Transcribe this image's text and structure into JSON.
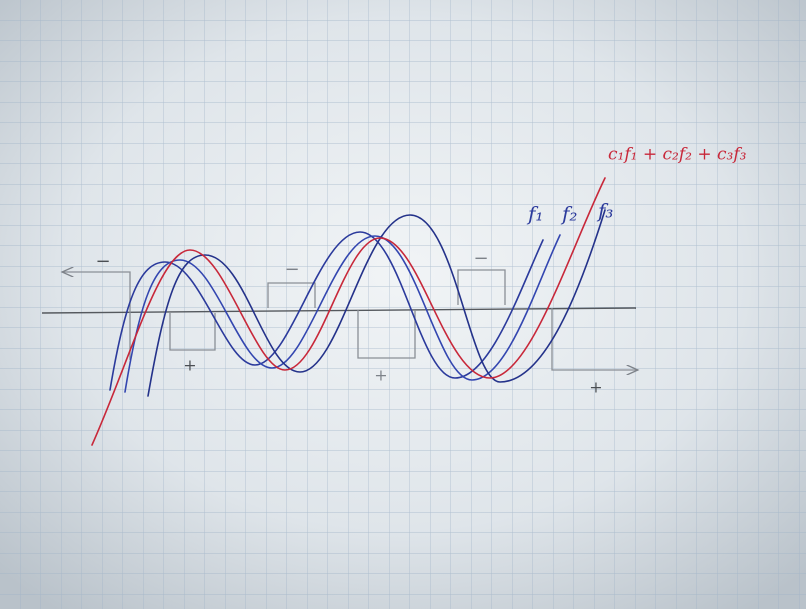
{
  "labels": {
    "sum": "c₁f₁ + c₂f₂ + c₃f₃",
    "curves": [
      "f₁",
      "f₂",
      "f₃"
    ]
  },
  "signs": {
    "minus": [
      "−",
      "−",
      "−"
    ],
    "plus": [
      "+",
      "+",
      "+"
    ]
  }
}
